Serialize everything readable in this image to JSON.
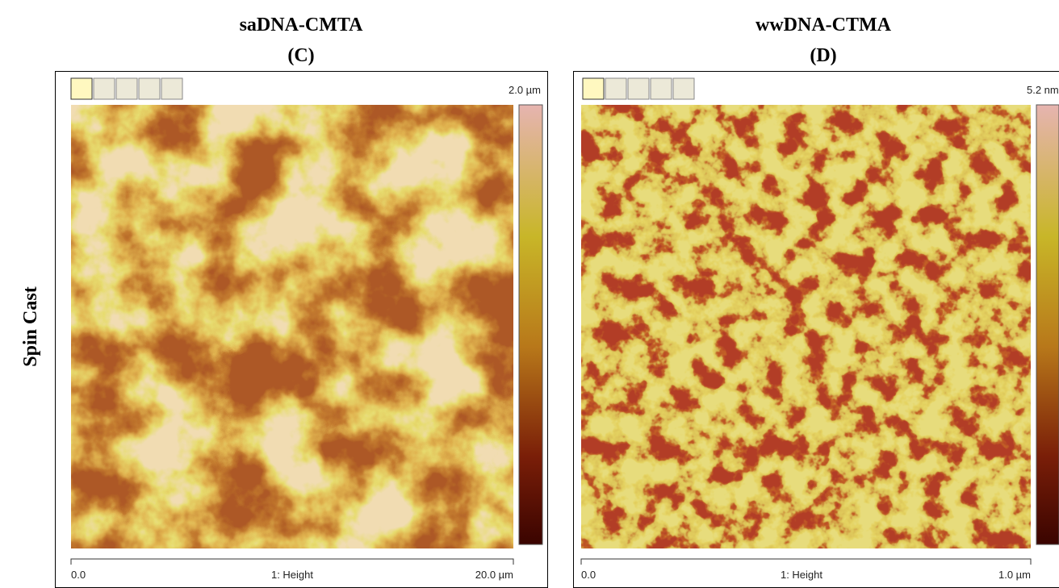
{
  "row_label": "Spin Cast",
  "panels": [
    {
      "title": "saDNA-CMTA",
      "label": "(C)",
      "scale_max": "2.0 µm",
      "axis_start": "0.0",
      "axis_label": "1: Height",
      "axis_end": "20.0 µm"
    },
    {
      "title": "wwDNA-CTMA",
      "label": "(D)",
      "scale_max": "5.2 nm",
      "axis_start": "0.0",
      "axis_label": "1: Height",
      "axis_end": "1.0 µm"
    }
  ]
}
